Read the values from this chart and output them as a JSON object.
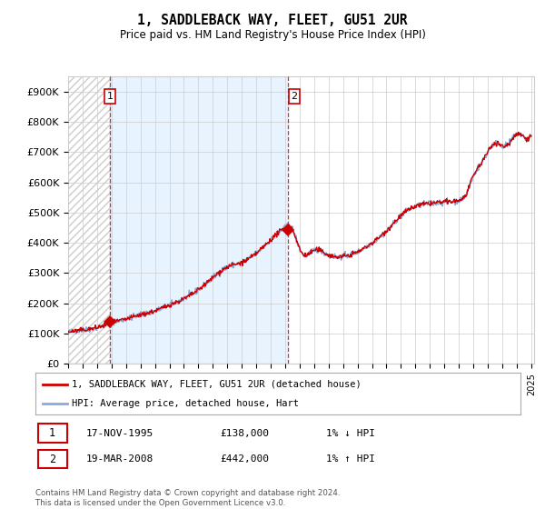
{
  "title": "1, SADDLEBACK WAY, FLEET, GU51 2UR",
  "subtitle": "Price paid vs. HM Land Registry's House Price Index (HPI)",
  "ylabel_ticks": [
    "£0",
    "£100K",
    "£200K",
    "£300K",
    "£400K",
    "£500K",
    "£600K",
    "£700K",
    "£800K",
    "£900K"
  ],
  "ytick_vals": [
    0,
    100000,
    200000,
    300000,
    400000,
    500000,
    600000,
    700000,
    800000,
    900000
  ],
  "ylim": [
    0,
    950000
  ],
  "xlim_start": 1993.0,
  "xlim_end": 2025.2,
  "hpi_color": "#88aadd",
  "price_color": "#cc0000",
  "hatch_color": "#cccccc",
  "sale1_x": 1995.88,
  "sale1_y": 138000,
  "sale2_x": 2008.22,
  "sale2_y": 442000,
  "legend_line1": "1, SADDLEBACK WAY, FLEET, GU51 2UR (detached house)",
  "legend_line2": "HPI: Average price, detached house, Hart",
  "table_row1_num": "1",
  "table_row1_date": "17-NOV-1995",
  "table_row1_price": "£138,000",
  "table_row1_hpi": "1% ↓ HPI",
  "table_row2_num": "2",
  "table_row2_date": "19-MAR-2008",
  "table_row2_price": "£442,000",
  "table_row2_hpi": "1% ↑ HPI",
  "footer": "Contains HM Land Registry data © Crown copyright and database right 2024.\nThis data is licensed under the Open Government Licence v3.0.",
  "background_color": "#ffffff",
  "plot_bg_color": "#ffffff",
  "grid_color": "#cccccc",
  "shade_between_color": "#ddeeff"
}
